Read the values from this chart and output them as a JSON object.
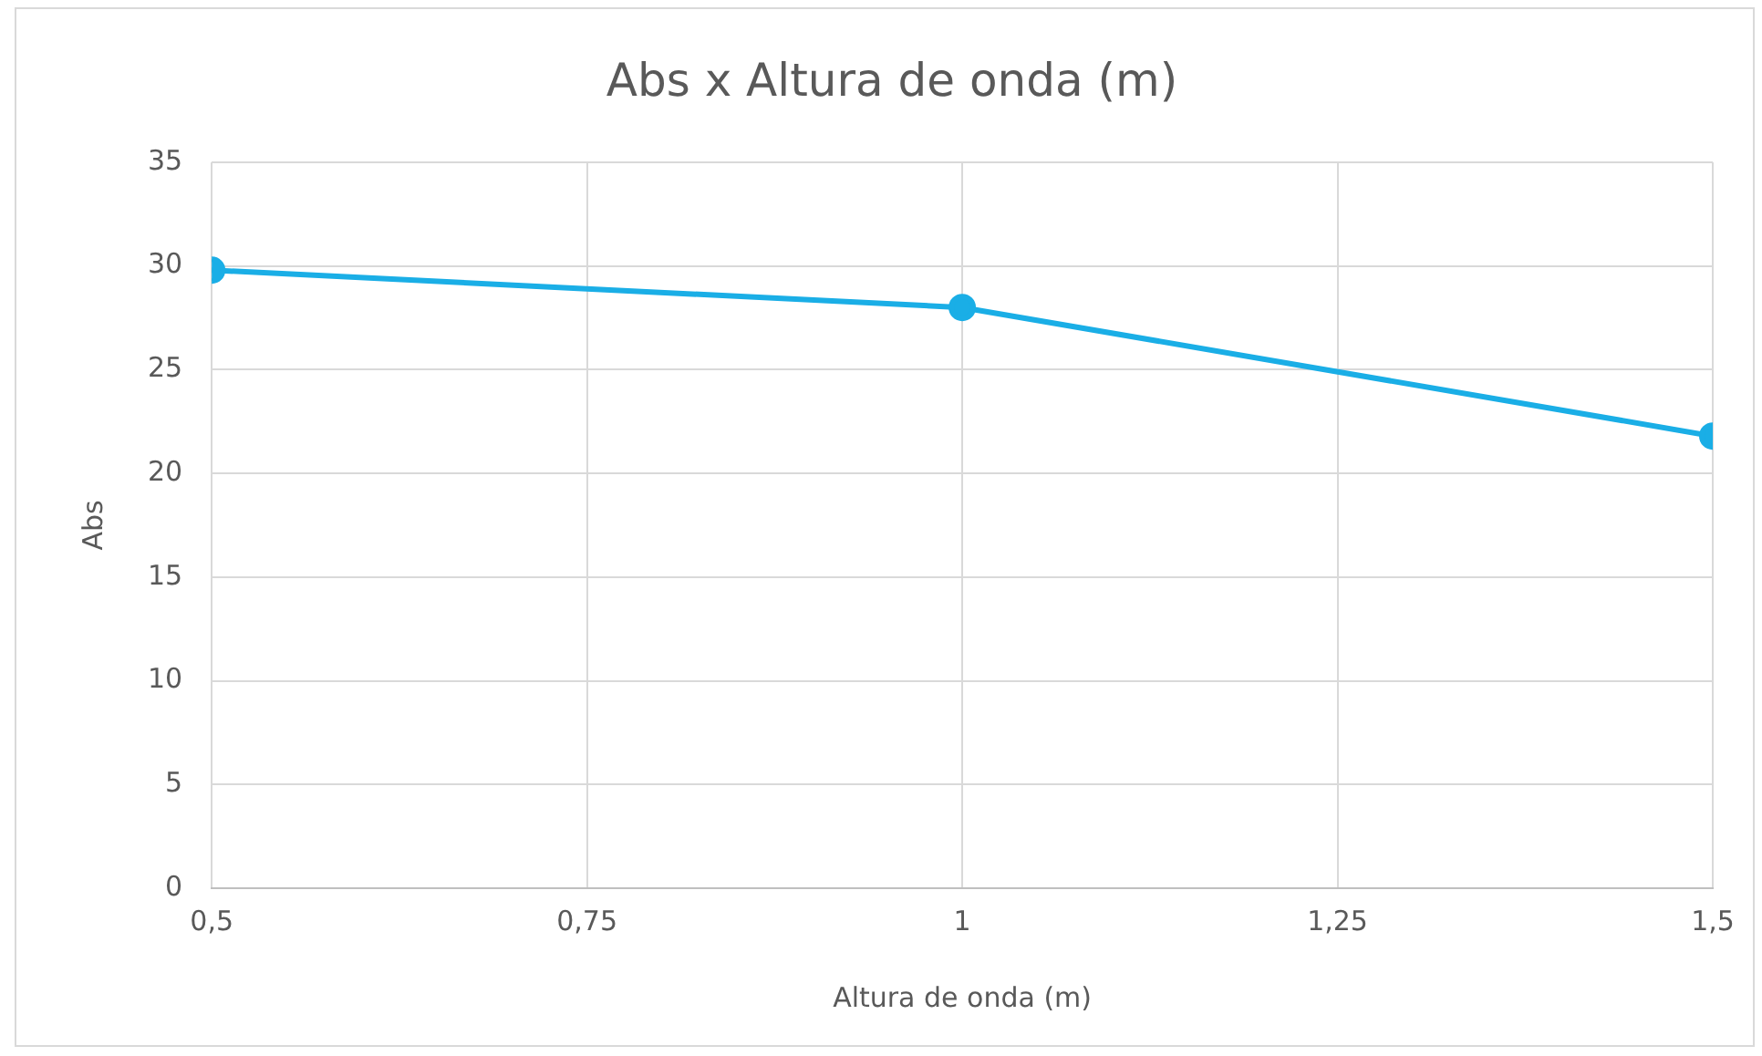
{
  "chart_data": {
    "type": "line",
    "title": "Abs x Altura de onda (m)",
    "xlabel": "Altura de onda (m)",
    "ylabel": "Abs",
    "x": [
      0.5,
      1,
      1.5
    ],
    "series": [
      {
        "color": "#1aaee6",
        "values": [
          29.8,
          28,
          21.8
        ]
      }
    ],
    "xlim": [
      0.5,
      1.5
    ],
    "xticks": [
      {
        "value": 0.5,
        "label": "0,5"
      },
      {
        "value": 0.75,
        "label": "0,75"
      },
      {
        "value": 1,
        "label": "1"
      },
      {
        "value": 1.25,
        "label": "1,25"
      },
      {
        "value": 1.5,
        "label": "1,5"
      }
    ],
    "ylim": [
      0,
      35
    ],
    "yticks": [
      0,
      5,
      10,
      15,
      20,
      25,
      30,
      35
    ],
    "grid": true,
    "legend": false,
    "marker": "circle",
    "line_style": "solid"
  }
}
